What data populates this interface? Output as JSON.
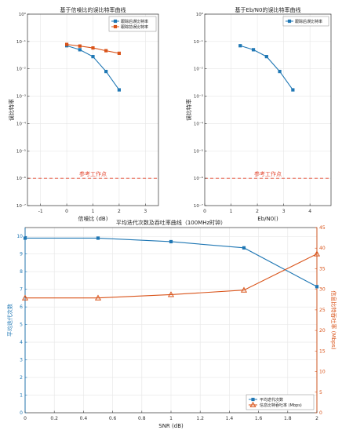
{
  "colors": {
    "blue": "#1f77b4",
    "orange": "#d95319",
    "red_ref": "#e34a33",
    "axis": "#333333",
    "grid": "#e6e6e6"
  },
  "chart_data": [
    {
      "type": "line",
      "title": "基于信噪比的误比特率曲线",
      "xlabel": "信噪比 (dB)",
      "ylabel": "误比特率",
      "yscale": "log",
      "xlim": [
        -1.5,
        3.5
      ],
      "ylim_exp": [
        -7,
        0
      ],
      "xticks": [
        -1,
        0,
        1,
        2,
        3
      ],
      "ytick_labels": [
        "10⁰",
        "10⁻¹",
        "10⁻²",
        "10⁻³",
        "10⁻⁴",
        "10⁻⁵",
        "10⁻⁶",
        "10⁻⁷"
      ],
      "grid": true,
      "legend_position": "top-right",
      "series": [
        {
          "name": "跟踪后误比特率",
          "color": "blue",
          "marker": "square",
          "x": [
            0,
            0.5,
            1,
            1.5,
            2
          ],
          "y": [
            0.07,
            0.05,
            0.028,
            0.008,
            0.0017
          ]
        },
        {
          "name": "跟踪前误比特率",
          "color": "orange",
          "marker": "square",
          "x": [
            0,
            0.5,
            1,
            1.5,
            2
          ],
          "y": [
            0.078,
            0.068,
            0.058,
            0.046,
            0.037
          ]
        }
      ],
      "reference": {
        "label": "参考工作点",
        "y": 1e-06
      }
    },
    {
      "type": "line",
      "title": "基于Eb/N0的误比特率曲线",
      "xlabel": "Eb/N0()",
      "ylabel": "误比特率",
      "yscale": "log",
      "xlim": [
        0,
        4.8
      ],
      "ylim_exp": [
        -7,
        0
      ],
      "xticks": [
        0,
        1,
        2,
        3,
        4
      ],
      "ytick_labels": [
        "10⁰",
        "10⁻¹",
        "10⁻²",
        "10⁻³",
        "10⁻⁴",
        "10⁻⁵",
        "10⁻⁶",
        "10⁻⁷"
      ],
      "grid": true,
      "legend_position": "top-right",
      "series": [
        {
          "name": "跟踪后误比特率",
          "color": "blue",
          "marker": "square",
          "x": [
            1.35,
            1.85,
            2.35,
            2.85,
            3.35
          ],
          "y": [
            0.07,
            0.05,
            0.028,
            0.008,
            0.0017
          ]
        }
      ],
      "reference": {
        "label": "参考工作点",
        "y": 1e-06
      }
    },
    {
      "type": "line",
      "title": "平均迭代次数及吞吐率曲线（100MHz时钟）",
      "xlabel": "SNR (dB)",
      "ylabel_left": "平均迭代次数",
      "ylabel_right": "信息比特吞吐率 (Mbps)",
      "xlim": [
        0,
        2
      ],
      "ylim_left": [
        0,
        10.5
      ],
      "ylim_right": [
        0,
        45
      ],
      "xticks": [
        0,
        0.2,
        0.4,
        0.6,
        0.8,
        1,
        1.2,
        1.4,
        1.6,
        1.8,
        2
      ],
      "xtick_labels": [
        "0",
        "0.2",
        "0.4",
        "0.6",
        "0.8",
        "1",
        "1.2",
        "1.4",
        "1.6",
        "1.8",
        "2"
      ],
      "yticks_left": [
        0,
        1,
        2,
        3,
        4,
        5,
        6,
        7,
        8,
        9,
        10
      ],
      "yticks_right": [
        0,
        5,
        10,
        15,
        20,
        25,
        30,
        35,
        40,
        45
      ],
      "grid": true,
      "legend_position": "bottom-right",
      "series": [
        {
          "name": "平均迭代次数",
          "axis": "left",
          "color": "blue",
          "marker": "square",
          "x": [
            0,
            0.5,
            1,
            1.5,
            2
          ],
          "y": [
            9.9,
            9.9,
            9.7,
            9.35,
            7.15
          ]
        },
        {
          "name": "信息比特吞吐率 (Mbps)",
          "axis": "right",
          "color": "orange",
          "marker": "triangle",
          "x": [
            0,
            0.5,
            1,
            1.5,
            2
          ],
          "y": [
            27.9,
            27.9,
            28.7,
            29.8,
            38.6
          ]
        }
      ]
    }
  ]
}
